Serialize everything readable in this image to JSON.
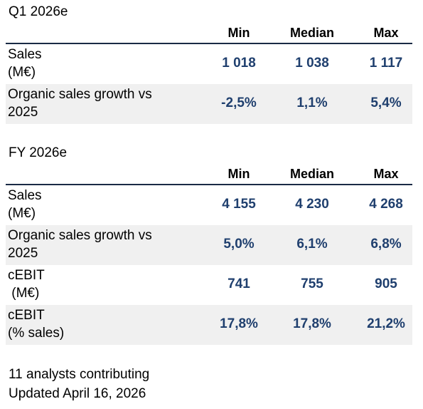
{
  "q1": {
    "title": "Q1 2026e",
    "headers": {
      "min": "Min",
      "median": "Median",
      "max": "Max"
    },
    "rows": [
      {
        "label1": "Sales",
        "label2": "(M€)",
        "min": "1 018",
        "median": "1 038",
        "max": "1 117"
      },
      {
        "label1": "Organic sales growth vs",
        "label2": "2025",
        "min": "-2,5%",
        "median": "1,1%",
        "max": "5,4%"
      }
    ]
  },
  "fy": {
    "title": "FY 2026e",
    "headers": {
      "min": "Min",
      "median": "Median",
      "max": "Max"
    },
    "rows": [
      {
        "label1": "Sales",
        "label2": "(M€)",
        "min": "4 155",
        "median": "4 230",
        "max": "4 268"
      },
      {
        "label1": "Organic sales growth vs",
        "label2": "2025",
        "min": "5,0%",
        "median": "6,1%",
        "max": "6,8%"
      },
      {
        "label1": "cEBIT",
        "label2": " (M€)",
        "min": "741",
        "median": "755",
        "max": "905"
      },
      {
        "label1": "cEBIT",
        "label2": "(% sales)",
        "min": "17,8%",
        "median": "17,8%",
        "max": "21,2%"
      }
    ]
  },
  "footer": {
    "analysts": "11 analysts contributing",
    "updated": "Updated April 16, 2026"
  }
}
